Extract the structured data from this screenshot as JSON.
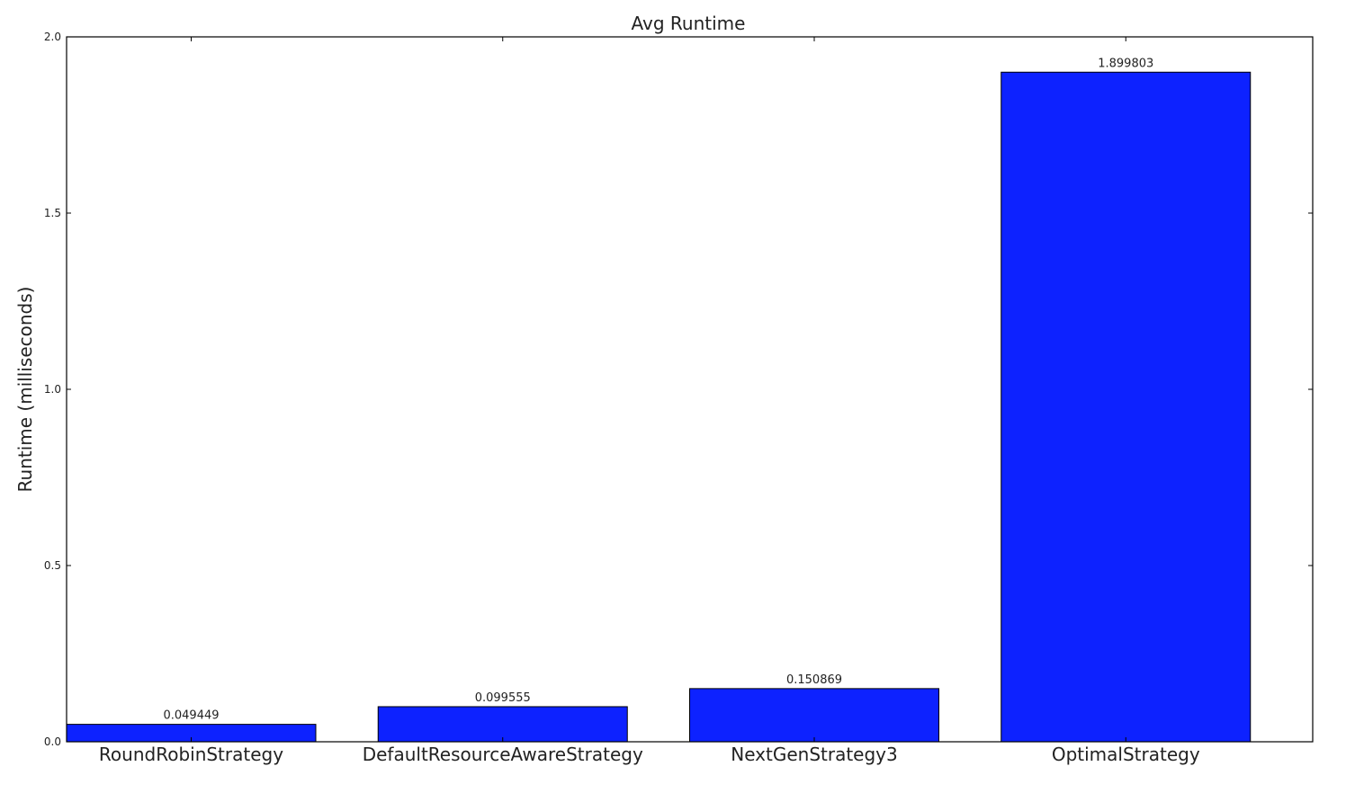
{
  "chart_data": {
    "type": "bar",
    "title": "Avg Runtime",
    "xlabel": "",
    "ylabel": "Runtime (milliseconds)",
    "categories": [
      "RoundRobinStrategy",
      "DefaultResourceAwareStrategy",
      "NextGenStrategy3",
      "OptimalStrategy"
    ],
    "values": [
      0.049449,
      0.099555,
      0.150869,
      1.899803
    ],
    "data_labels": [
      "0.049449",
      "0.099555",
      "0.150869",
      "1.899803"
    ],
    "ylim": [
      0,
      2.0
    ],
    "yticks": [
      "0.0",
      "0.5",
      "1.0",
      "1.5",
      "2.0"
    ],
    "grid": false,
    "bar_color": "#0d22ff"
  }
}
